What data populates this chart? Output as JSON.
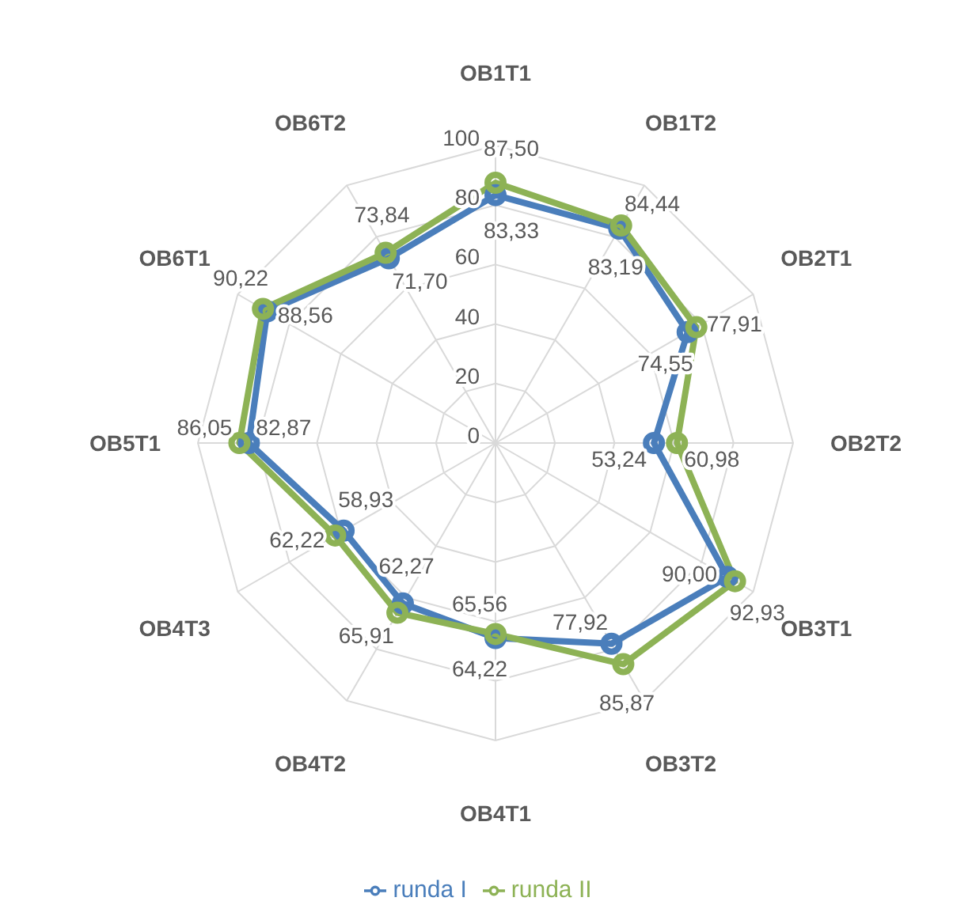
{
  "chart_data": {
    "type": "radar",
    "categories": [
      "OB1T1",
      "OB1T2",
      "OB2T1",
      "OB2T2",
      "OB3T1",
      "OB3T2",
      "OB4T1",
      "OB4T2",
      "OB4T3",
      "OB5T1",
      "OB6T1",
      "OB6T2"
    ],
    "series": [
      {
        "name": "runda I",
        "color": "#4a7ebb",
        "values": [
          83.33,
          83.19,
          74.55,
          53.24,
          90.0,
          77.92,
          65.56,
          62.27,
          58.93,
          82.87,
          88.56,
          71.7
        ],
        "value_labels": [
          "83,33",
          "83,19",
          "74,55",
          "53,24",
          "90,00",
          "77,92",
          "65,56",
          "62,27",
          "58,93",
          "82,87",
          "88,56",
          "71,70"
        ]
      },
      {
        "name": "runda II",
        "color": "#8db255",
        "values": [
          87.5,
          84.44,
          77.91,
          60.98,
          92.93,
          85.87,
          64.22,
          65.91,
          62.22,
          86.05,
          90.22,
          73.84
        ],
        "value_labels": [
          "87,50",
          "84,44",
          "77,91",
          "60,98",
          "92,93",
          "85,87",
          "64,22",
          "65,91",
          "62,22",
          "86,05",
          "90,22",
          "73,84"
        ]
      }
    ],
    "ylim": [
      0,
      100
    ],
    "yticks": [
      0,
      20,
      40,
      60,
      80,
      100
    ],
    "grid": true,
    "legend": "bottom",
    "marker": "circle",
    "line_style": "solid"
  }
}
